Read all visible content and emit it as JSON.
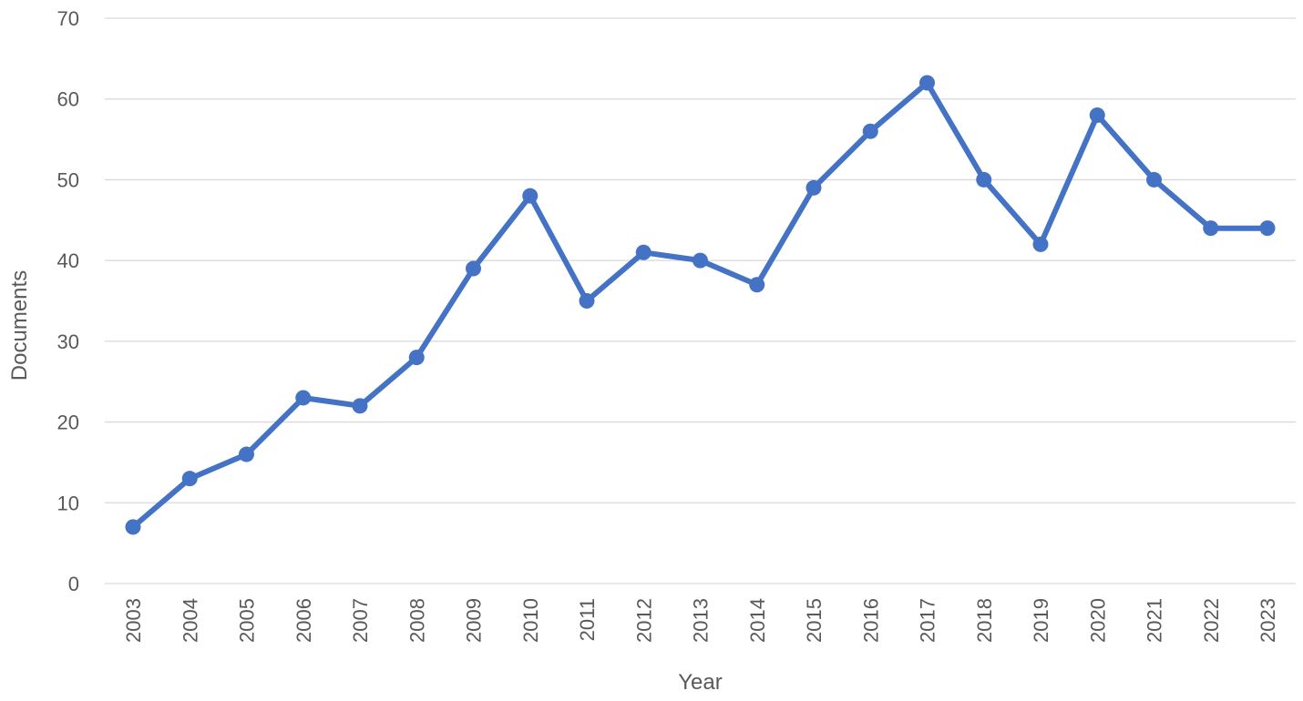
{
  "chart_data": {
    "type": "line",
    "title": "",
    "xlabel": "Year",
    "ylabel": "Documents",
    "categories": [
      "2003",
      "2004",
      "2005",
      "2006",
      "2007",
      "2008",
      "2009",
      "2010",
      "2011",
      "2012",
      "2013",
      "2014",
      "2015",
      "2016",
      "2017",
      "2018",
      "2019",
      "2020",
      "2021",
      "2022",
      "2023"
    ],
    "series": [
      {
        "values": [
          7,
          13,
          16,
          23,
          22,
          28,
          39,
          48,
          35,
          41,
          40,
          37,
          49,
          56,
          62,
          50,
          42,
          58,
          50,
          44,
          44
        ],
        "color": "#4472c4"
      }
    ],
    "ylim": [
      0,
      70
    ],
    "yticks": [
      "0",
      "10",
      "20",
      "30",
      "40",
      "50",
      "60",
      "70"
    ],
    "grid": "horizontal",
    "legend": "none"
  }
}
